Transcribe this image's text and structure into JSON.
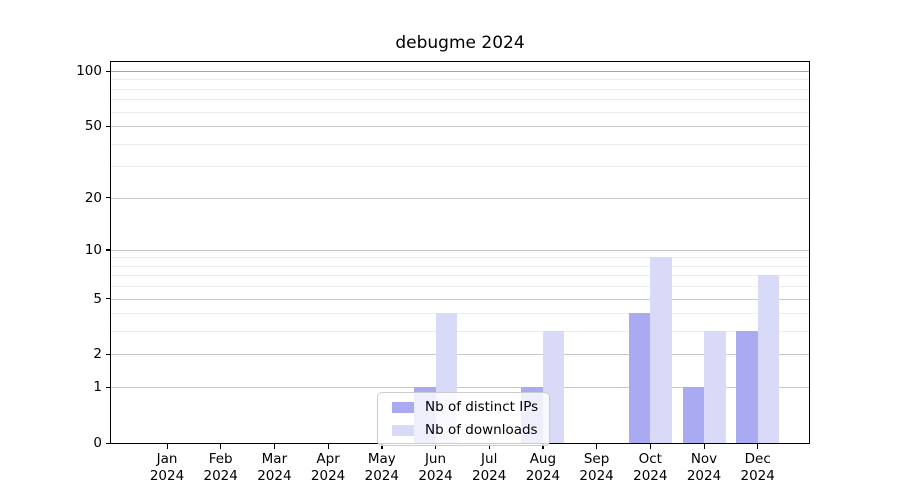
{
  "chart_data": {
    "type": "bar",
    "title": "debugme 2024",
    "categories": [
      "Jan 2024",
      "Feb 2024",
      "Mar 2024",
      "Apr 2024",
      "May 2024",
      "Jun 2024",
      "Jul 2024",
      "Aug 2024",
      "Sep 2024",
      "Oct 2024",
      "Nov 2024",
      "Dec 2024"
    ],
    "series": [
      {
        "name": "Nb of distinct IPs",
        "color": "#a9aaf2",
        "values": [
          0,
          0,
          0,
          0,
          0,
          1,
          0,
          1,
          0,
          4,
          1,
          3
        ]
      },
      {
        "name": "Nb of downloads",
        "color": "#d9d9f8",
        "values": [
          0,
          0,
          0,
          0,
          0,
          4,
          0,
          3,
          0,
          9,
          3,
          7
        ]
      }
    ],
    "xlabel": "",
    "ylabel": "",
    "yscale": "log1p",
    "ylim": [
      0,
      112
    ],
    "y_major_ticks": [
      0,
      1,
      2,
      5,
      10,
      20,
      50,
      100
    ],
    "y_minor_gridlines": [
      3,
      4,
      6,
      7,
      8,
      9,
      30,
      40,
      60,
      70,
      80,
      90
    ],
    "grid": "on",
    "legend_position": "lower center"
  },
  "colors": {
    "axis": "#000000",
    "grid_major": "#c9c9c9",
    "grid_top": "#a5a5a5",
    "grid_minor": "#ececec",
    "legend_border": "#cccccc",
    "background": "#ffffff"
  }
}
